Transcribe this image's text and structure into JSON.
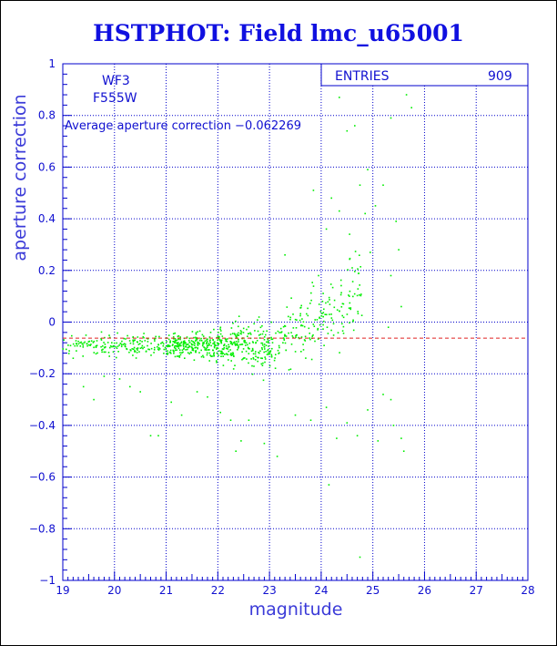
{
  "chart_data": {
    "type": "scatter",
    "title": "HSTPHOT: Field lmc_u65001",
    "xlabel": "magnitude",
    "ylabel": "aperture correction",
    "xlim": [
      19,
      28
    ],
    "ylim": [
      -1,
      1
    ],
    "x_ticks": [
      "19",
      "20",
      "21",
      "22",
      "23",
      "24",
      "25",
      "26",
      "27",
      "28"
    ],
    "y_ticks": [
      "1",
      "0.8",
      "0.6",
      "0.4",
      "0.2",
      "0",
      "−0.2",
      "−0.4",
      "−0.6",
      "−0.8",
      "−1"
    ],
    "grid": true,
    "stats_box": {
      "label": "ENTRIES",
      "value": "909"
    },
    "annotations": {
      "camera": "WF3",
      "filter": "F555W",
      "average": "Average aperture correction −0.062269"
    },
    "reference_line": {
      "y": -0.062269,
      "style": "dashed",
      "color": "#e02020"
    },
    "point_color": "#00ee00",
    "points_total": 909,
    "outliers": [
      [
        19.2,
        -0.14
      ],
      [
        19.4,
        -0.25
      ],
      [
        19.6,
        -0.3
      ],
      [
        19.8,
        -0.21
      ],
      [
        20.1,
        -0.22
      ],
      [
        20.3,
        -0.25
      ],
      [
        20.5,
        -0.27
      ],
      [
        20.7,
        -0.44
      ],
      [
        20.85,
        -0.44
      ],
      [
        21.1,
        -0.31
      ],
      [
        21.3,
        -0.36
      ],
      [
        21.6,
        -0.27
      ],
      [
        21.8,
        -0.29
      ],
      [
        22.05,
        -0.35
      ],
      [
        22.25,
        -0.38
      ],
      [
        22.35,
        -0.5
      ],
      [
        22.45,
        -0.46
      ],
      [
        22.6,
        -0.38
      ],
      [
        22.9,
        -0.47
      ],
      [
        23.15,
        -0.52
      ],
      [
        23.5,
        -0.36
      ],
      [
        23.8,
        -0.38
      ],
      [
        24.1,
        -0.33
      ],
      [
        24.15,
        -0.63
      ],
      [
        24.3,
        -0.45
      ],
      [
        24.5,
        -0.39
      ],
      [
        24.7,
        -0.44
      ],
      [
        24.75,
        -0.91
      ],
      [
        24.9,
        -0.34
      ],
      [
        25.1,
        -0.46
      ],
      [
        25.2,
        -0.28
      ],
      [
        25.4,
        -0.4
      ],
      [
        25.55,
        -0.45
      ],
      [
        25.6,
        -0.5
      ],
      [
        25.35,
        -0.3
      ],
      [
        24.35,
        0.87
      ],
      [
        24.5,
        0.74
      ],
      [
        24.65,
        0.76
      ],
      [
        24.75,
        0.53
      ],
      [
        25.05,
        0.45
      ],
      [
        25.2,
        0.53
      ],
      [
        25.35,
        0.79
      ],
      [
        25.65,
        0.88
      ],
      [
        25.75,
        0.83
      ],
      [
        24.85,
        0.42
      ],
      [
        25.45,
        0.39
      ],
      [
        23.85,
        0.51
      ],
      [
        24.2,
        0.48
      ],
      [
        24.55,
        0.34
      ],
      [
        24.95,
        0.27
      ],
      [
        25.35,
        0.18
      ],
      [
        25.55,
        0.06
      ],
      [
        25.3,
        -0.02
      ],
      [
        25.5,
        0.28
      ],
      [
        24.1,
        0.36
      ],
      [
        23.95,
        0.18
      ],
      [
        24.6,
        0.21
      ],
      [
        23.3,
        0.26
      ],
      [
        24.35,
        0.43
      ],
      [
        24.9,
        0.59
      ]
    ]
  }
}
